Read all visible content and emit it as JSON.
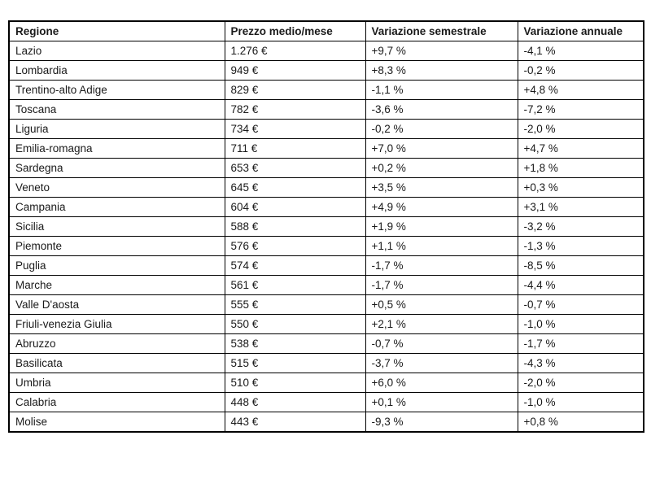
{
  "table": {
    "columns": [
      "Regione",
      "Prezzo medio/mese",
      "Variazione semestrale",
      "Variazione annuale"
    ],
    "rows": [
      [
        "Lazio",
        "1.276 €",
        "+9,7 %",
        "-4,1 %"
      ],
      [
        "Lombardia",
        "949 €",
        "+8,3 %",
        "-0,2 %"
      ],
      [
        "Trentino-alto Adige",
        "829 €",
        "-1,1 %",
        "+4,8 %"
      ],
      [
        "Toscana",
        "782 €",
        "-3,6 %",
        "-7,2 %"
      ],
      [
        "Liguria",
        "734 €",
        "-0,2 %",
        "-2,0 %"
      ],
      [
        "Emilia-romagna",
        "711 €",
        "+7,0 %",
        "+4,7 %"
      ],
      [
        "Sardegna",
        "653 €",
        "+0,2 %",
        "+1,8 %"
      ],
      [
        "Veneto",
        "645 €",
        "+3,5 %",
        "+0,3 %"
      ],
      [
        "Campania",
        "604 €",
        "+4,9 %",
        "+3,1 %"
      ],
      [
        "Sicilia",
        "588 €",
        "+1,9 %",
        "-3,2 %"
      ],
      [
        "Piemonte",
        "576 €",
        "+1,1 %",
        "-1,3 %"
      ],
      [
        "Puglia",
        "574 €",
        "-1,7 %",
        "-8,5 %"
      ],
      [
        "Marche",
        "561 €",
        "-1,7 %",
        "-4,4 %"
      ],
      [
        "Valle D'aosta",
        "555 €",
        "+0,5 %",
        "-0,7 %"
      ],
      [
        "Friuli-venezia Giulia",
        "550 €",
        "+2,1 %",
        "-1,0 %"
      ],
      [
        "Abruzzo",
        "538 €",
        "-0,7 %",
        "-1,7 %"
      ],
      [
        "Basilicata",
        "515 €",
        "-3,7 %",
        "-4,3 %"
      ],
      [
        "Umbria",
        "510 €",
        "+6,0 %",
        "-2,0 %"
      ],
      [
        "Calabria",
        "448 €",
        "+0,1 %",
        "-1,0 %"
      ],
      [
        "Molise",
        "443 €",
        "-9,3 %",
        "+0,8 %"
      ]
    ]
  },
  "chart_data": {
    "type": "table",
    "title": "",
    "columns": [
      "Regione",
      "Prezzo medio/mese",
      "Variazione semestrale",
      "Variazione annuale"
    ],
    "regions": [
      "Lazio",
      "Lombardia",
      "Trentino-alto Adige",
      "Toscana",
      "Liguria",
      "Emilia-romagna",
      "Sardegna",
      "Veneto",
      "Campania",
      "Sicilia",
      "Piemonte",
      "Puglia",
      "Marche",
      "Valle D'aosta",
      "Friuli-venezia Giulia",
      "Abruzzo",
      "Basilicata",
      "Umbria",
      "Calabria",
      "Molise"
    ],
    "prezzo_medio_mese_eur": [
      1276,
      949,
      829,
      782,
      734,
      711,
      653,
      645,
      604,
      588,
      576,
      574,
      561,
      555,
      550,
      538,
      515,
      510,
      448,
      443
    ],
    "variazione_semestrale_pct": [
      9.7,
      8.3,
      -1.1,
      -3.6,
      -0.2,
      7.0,
      0.2,
      3.5,
      4.9,
      1.9,
      1.1,
      -1.7,
      -1.7,
      0.5,
      2.1,
      -0.7,
      -3.7,
      6.0,
      0.1,
      -9.3
    ],
    "variazione_annuale_pct": [
      -4.1,
      -0.2,
      4.8,
      -7.2,
      -2.0,
      4.7,
      1.8,
      0.3,
      3.1,
      -3.2,
      -1.3,
      -8.5,
      -4.4,
      -0.7,
      -1.0,
      -1.7,
      -4.3,
      -2.0,
      -1.0,
      0.8
    ]
  },
  "colors": {
    "border": "#000000",
    "text": "#1a1a1a",
    "background": "#ffffff"
  }
}
